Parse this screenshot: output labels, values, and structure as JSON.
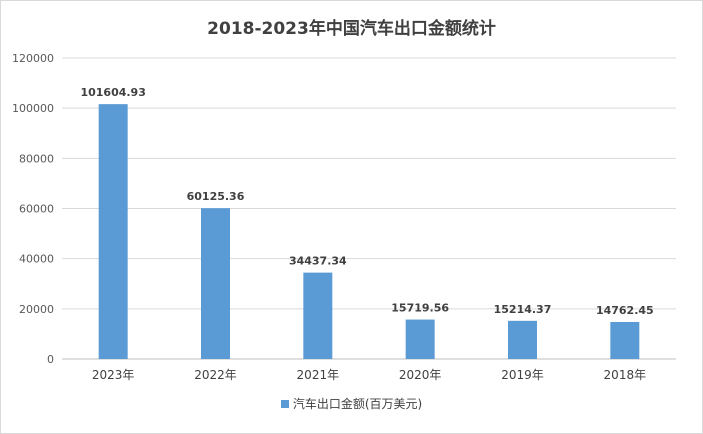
{
  "chart_data": {
    "type": "bar",
    "title": "2018-2023年中国汽车出口金额统计",
    "categories": [
      "2023年",
      "2022年",
      "2021年",
      "2020年",
      "2019年",
      "2018年"
    ],
    "series": [
      {
        "name": "汽车出口金额(百万美元)",
        "values": [
          101604.93,
          60125.36,
          34437.34,
          15719.56,
          15214.37,
          14762.45
        ],
        "labels": [
          "101604.93",
          "60125.36",
          "34437.34",
          "15719.56",
          "15214.37",
          "14762.45"
        ],
        "color": "#5b9bd5"
      }
    ],
    "ylim": [
      0,
      120000
    ],
    "yticks": [
      0,
      20000,
      40000,
      60000,
      80000,
      100000,
      120000
    ],
    "grid": true,
    "legend": "bottom"
  },
  "colors": {
    "grid": "#d9d9d9",
    "axis": "#bfbfbf"
  }
}
